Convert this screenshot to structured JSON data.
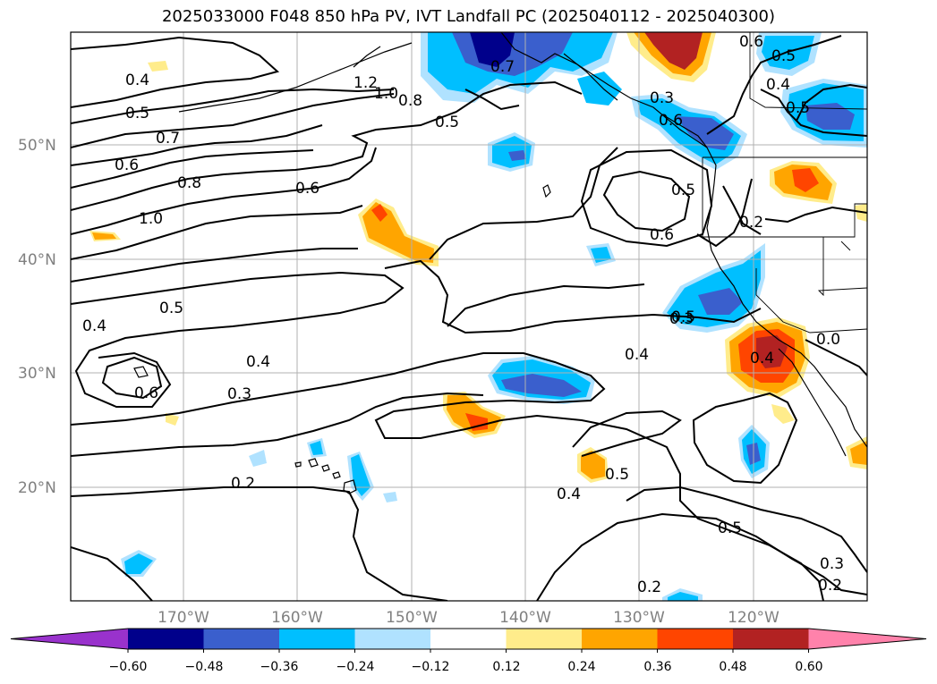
{
  "title": "2025033000 F048 850 hPa PV, IVT Landfall PC (2025040112 - 2025040300)",
  "latitude_labels": [
    "50°N",
    "40°N",
    "30°N",
    "20°N"
  ],
  "longitude_labels": [
    "170°W",
    "160°W",
    "150°W",
    "140°W",
    "130°W",
    "120°W"
  ],
  "colorbar": {
    "colors": [
      "#9932cc",
      "#00008b",
      "#3a5fcd",
      "#00bfff",
      "#b0e2ff",
      "#ffffff",
      "#ffec8b",
      "#ffa500",
      "#ff4500",
      "#b22222",
      "#ff82ab"
    ],
    "tick_labels": [
      "−0.60",
      "−0.48",
      "−0.36",
      "−0.24",
      "−0.12",
      "0.12",
      "0.24",
      "0.36",
      "0.48",
      "0.60"
    ]
  },
  "contour_labels": [
    "0.4",
    "0.5",
    "0.7",
    "0.6",
    "0.8",
    "1.0",
    "1.2",
    "1.0",
    "0.8",
    "0.7",
    "0.5",
    "0.6",
    "0.3",
    "0.6",
    "0.5",
    "0.4",
    "0.5",
    "0.5",
    "0.6",
    "0.2",
    "0.5",
    "0.6",
    "0.4",
    "0.5",
    "0.3",
    "0.4",
    "0.4",
    "0.3",
    "0.4",
    "0.6",
    "0.2",
    "0.5",
    "0.4",
    "0.5",
    "0.2",
    "0.3",
    "0.2",
    "0.0"
  ],
  "palette": {
    "grid": "#b0b0b0",
    "axis_text": "#808080"
  }
}
